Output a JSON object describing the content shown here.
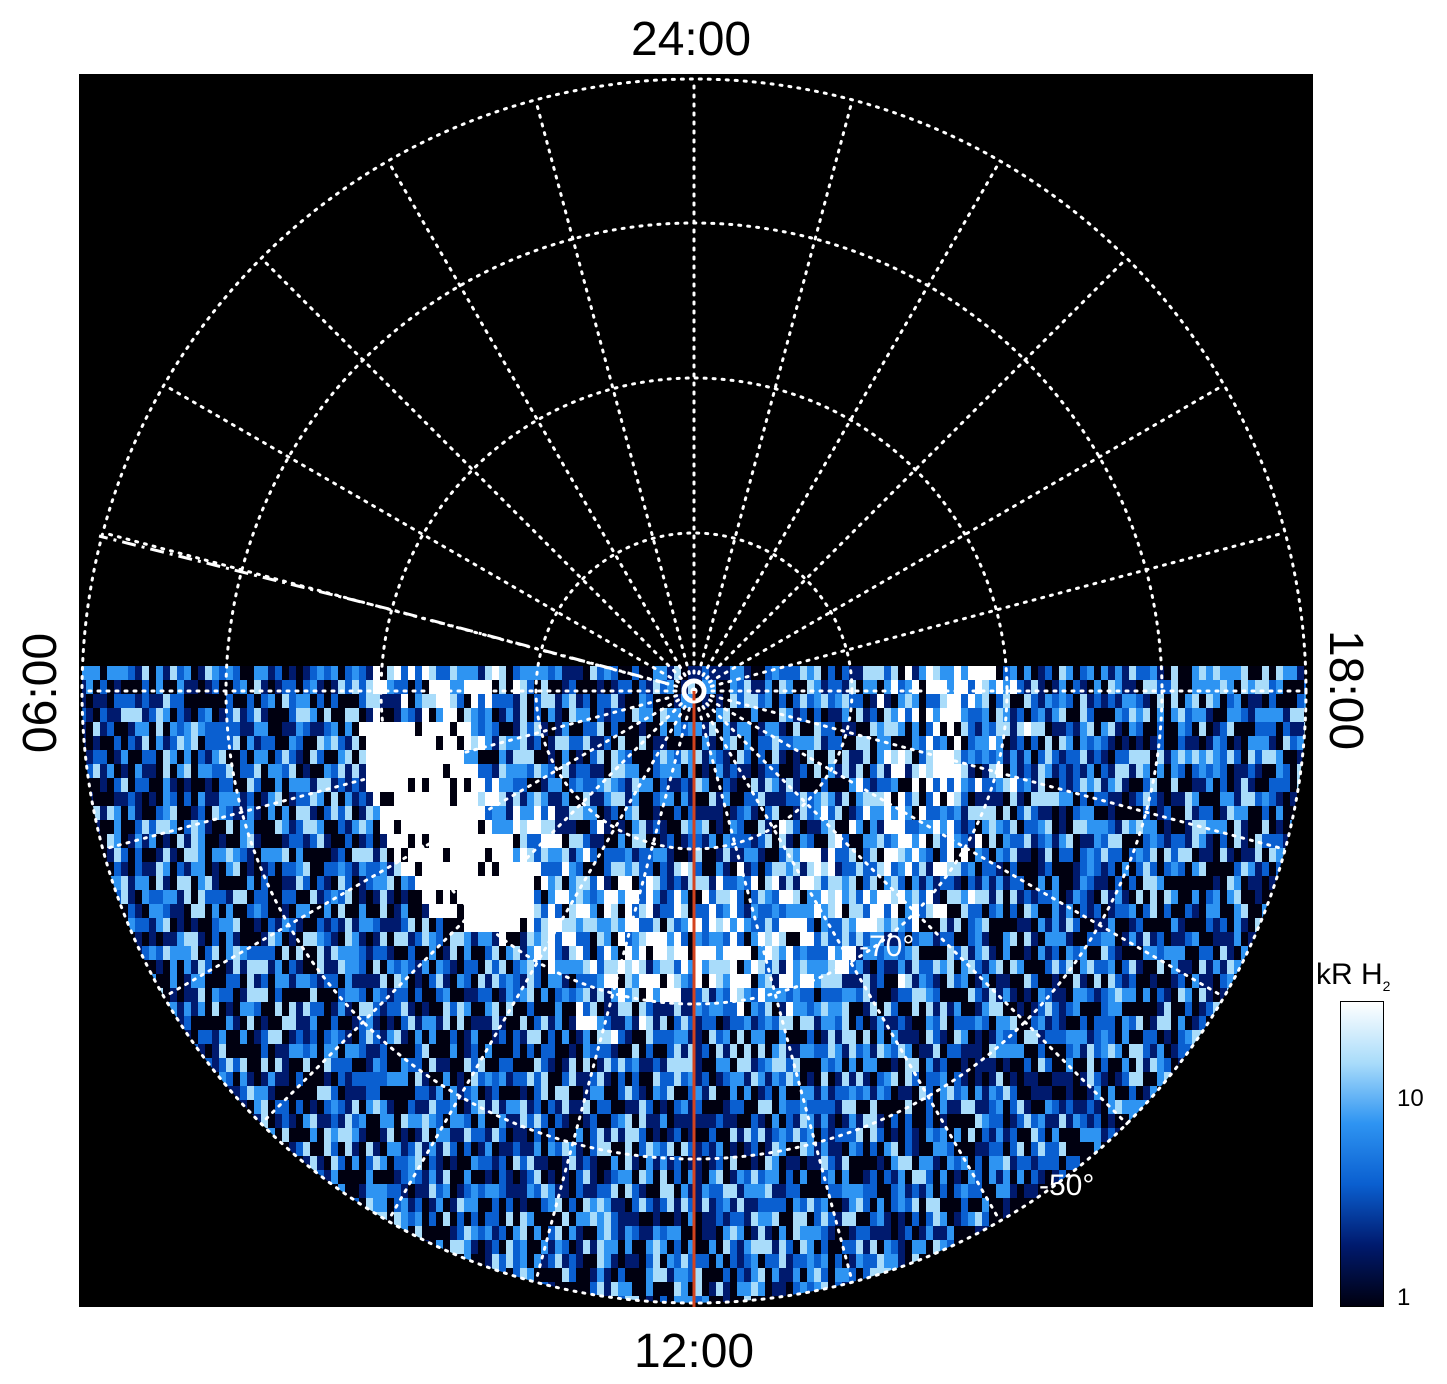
{
  "labels": {
    "top": "24:00",
    "bottom": "12:00",
    "left": "06:00",
    "right": "18:00"
  },
  "latitude_labels": {
    "inner": "-70°",
    "outer": "-50°"
  },
  "colorbar": {
    "title": "kR H",
    "title_sub": "2",
    "ticks": [
      "10",
      "1"
    ],
    "colors": [
      "#000010",
      "#001a6e",
      "#0a5fd0",
      "#2e94f2",
      "#a9dcfa",
      "#ffffff"
    ]
  },
  "colors": {
    "grid": "#ffffff",
    "meridian_line": "#d4431e",
    "background": "#000000"
  }
}
